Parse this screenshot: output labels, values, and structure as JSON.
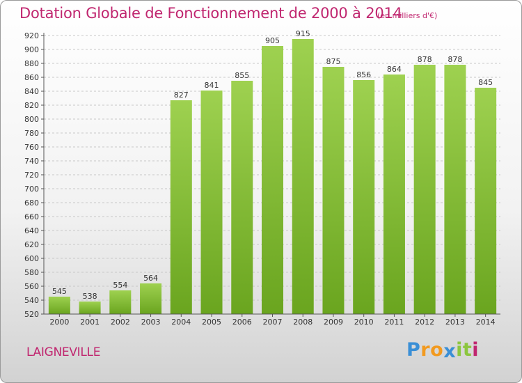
{
  "chart_data": {
    "type": "bar",
    "title": "Dotation Globale de Fonctionnement de 2000 à 2014",
    "unit_note": "(en milliers d'€)",
    "categories": [
      "2000",
      "2001",
      "2002",
      "2003",
      "2004",
      "2005",
      "2006",
      "2007",
      "2008",
      "2009",
      "2010",
      "2011",
      "2012",
      "2013",
      "2014"
    ],
    "values": [
      545,
      538,
      554,
      564,
      827,
      841,
      855,
      905,
      915,
      875,
      856,
      864,
      878,
      878,
      845
    ],
    "ylim": [
      520,
      920
    ],
    "ytick_step": 20,
    "xlabel": "",
    "ylabel": "",
    "grid": true,
    "bar_color": "#8cc63f"
  },
  "location": "LAIGNEVILLE",
  "brand": {
    "letters": [
      "P",
      "r",
      "o",
      "x",
      "i",
      "t",
      "i"
    ],
    "colors": [
      "#3a8fd6",
      "#f29a1f",
      "#f29a1f",
      "#3a8fd6",
      "#8cc63f",
      "#8cc63f",
      "#c0266f"
    ]
  }
}
